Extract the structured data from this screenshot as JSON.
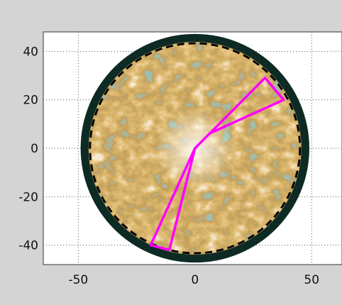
{
  "chart_data": {
    "type": "scatter",
    "title": "",
    "xlabel": "",
    "ylabel": "",
    "xlim": [
      -65,
      63
    ],
    "ylim": [
      -48,
      48
    ],
    "x_ticks": [
      -50,
      0,
      50
    ],
    "y_ticks": [
      40,
      20,
      0,
      -20,
      -40
    ],
    "x_tick_labels": [
      "-50",
      "0",
      "50"
    ],
    "y_tick_labels": [
      "40",
      "20",
      "0",
      "-20",
      "-40"
    ],
    "grid": true,
    "grid_style": "dotted",
    "disk": {
      "center": [
        0,
        0
      ],
      "outer_radius": 49,
      "dashed_radius": 45
    },
    "series": [
      {
        "color": "#ff00ff",
        "points": [
          [
            0,
            0
          ],
          [
            30,
            29
          ],
          [
            38,
            20
          ],
          [
            6,
            6
          ]
        ]
      },
      {
        "color": "#ff00ff",
        "points": [
          [
            0,
            0
          ],
          [
            -19,
            -40
          ],
          [
            -11,
            -42
          ],
          [
            0,
            0
          ]
        ]
      }
    ],
    "colors": {
      "background": "#d4d4d4",
      "plot_area": "#ffffff",
      "ring": "#0d2b24",
      "dashed_circle": "#000000",
      "texture_light": "#f3dcb0",
      "texture_mid": "#c98a2e",
      "texture_dark": "#7a4612",
      "texture_teal": "#35a09a",
      "marker": "#ff00ff"
    }
  }
}
